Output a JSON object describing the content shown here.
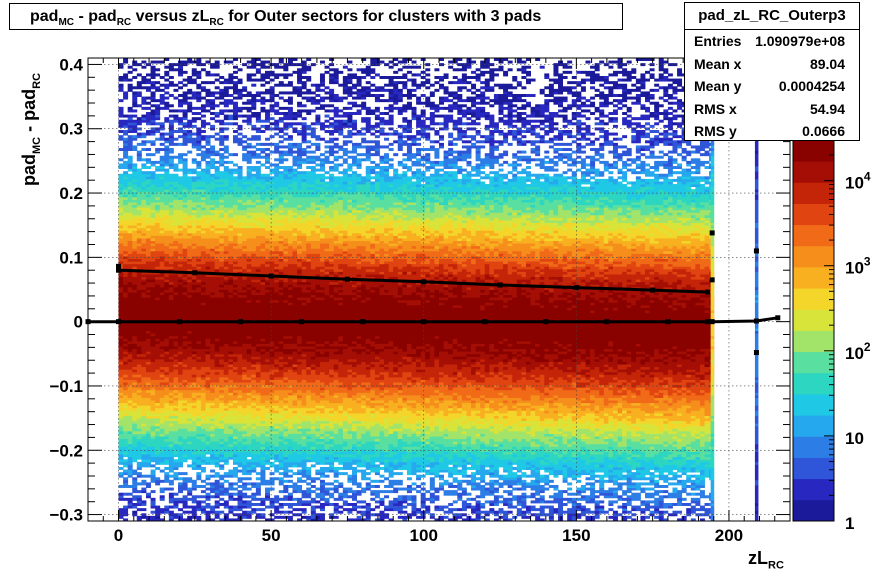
{
  "title": {
    "parts": [
      "pad",
      "MC",
      " - pad",
      "RC",
      " versus zL",
      "RC",
      " for Outer sectors for clusters with 3 pads"
    ]
  },
  "stats": {
    "name": "pad_zL_RC_Outerp3",
    "rows": [
      {
        "label": "Entries",
        "value": "1.090979e+08"
      },
      {
        "label": "Mean x",
        "value": "89.04"
      },
      {
        "label": "Mean y",
        "value": "0.0004254"
      },
      {
        "label": "RMS x",
        "value": "54.94"
      },
      {
        "label": "RMS y",
        "value": "0.0666"
      }
    ]
  },
  "axes": {
    "xlabel_main": "zL",
    "xlabel_sub": "RC",
    "ylabel_parts": [
      "pad",
      "MC",
      " - pad",
      "RC"
    ],
    "xticks": [
      {
        "v": 0,
        "label": "0"
      },
      {
        "v": 50,
        "label": "50"
      },
      {
        "v": 100,
        "label": "100"
      },
      {
        "v": 150,
        "label": "150"
      },
      {
        "v": 200,
        "label": "200"
      }
    ],
    "yticks": [
      {
        "v": 0.4,
        "label": "0.4"
      },
      {
        "v": 0.3,
        "label": "0.3"
      },
      {
        "v": 0.2,
        "label": "0.2"
      },
      {
        "v": 0.1,
        "label": "0.1"
      },
      {
        "v": 0,
        "label": "0"
      },
      {
        "v": -0.1,
        "label": "−0.1"
      },
      {
        "v": -0.2,
        "label": "−0.2"
      },
      {
        "v": -0.3,
        "label": "−0.3"
      }
    ],
    "zticks": [
      {
        "v": 1,
        "label": "1"
      },
      {
        "v": 10,
        "label": "10"
      },
      {
        "v": 100,
        "label": "10",
        "exp": "2"
      },
      {
        "v": 1000,
        "label": "10",
        "exp": "3"
      },
      {
        "v": 10000,
        "label": "10",
        "exp": "4"
      }
    ]
  },
  "chart_data": {
    "type": "heatmap",
    "title": "pad_MC - pad_RC versus zL_RC for Outer sectors for clusters with 3 pads",
    "xlabel": "zL_RC",
    "ylabel": "pad_MC - pad_RC",
    "xlim": [
      -10,
      220
    ],
    "ylim": [
      -0.31,
      0.41
    ],
    "z_scale": "log",
    "zlim": [
      1,
      30000
    ],
    "grid": true,
    "palette": [
      "#1a1a9a",
      "#2828c0",
      "#2f55d8",
      "#2c7ee6",
      "#26a8ee",
      "#1fc9e6",
      "#2cd6c0",
      "#59dfa0",
      "#a2e36a",
      "#d8e43a",
      "#f4d52a",
      "#f8b020",
      "#f68e1c",
      "#f06a18",
      "#e04410",
      "#c42408",
      "#a40e04",
      "#8a0200"
    ],
    "density": {
      "x_range": [
        0,
        194
      ],
      "peak_y_at_x0": 0.01,
      "peak_y_at_x194": -0.012,
      "width_y_at_x0": 0.09,
      "width_y_at_x194": 0.092,
      "peak_log10_counts": 4.45,
      "extra_strips": [
        {
          "x": 194.5,
          "relative_weight": 0.6
        },
        {
          "x": 209.0,
          "relative_weight": 0.2
        }
      ]
    },
    "series": [
      {
        "name": "profile",
        "style": "markers",
        "color": "#000000",
        "x": [
          -10,
          0,
          20,
          40,
          60,
          80,
          100,
          120,
          140,
          160,
          180,
          193,
          194.5,
          209,
          216
        ],
        "y": [
          0.0,
          0.0,
          0.0,
          0.0,
          0.0,
          0.0,
          0.0,
          0.0,
          0.0,
          0.0,
          0.0,
          0.0,
          0.0,
          0.001,
          0.006
        ]
      },
      {
        "name": "slope line",
        "style": "markers",
        "color": "#000000",
        "x": [
          0,
          25,
          50,
          75,
          100,
          125,
          150,
          175,
          193
        ],
        "y": [
          0.08,
          0.076,
          0.071,
          0.066,
          0.062,
          0.057,
          0.053,
          0.049,
          0.046
        ]
      },
      {
        "name": "isolated points",
        "style": "markers",
        "color": "#000000",
        "x": [
          0,
          194.5,
          194.5,
          209,
          209
        ],
        "y": [
          0.086,
          0.138,
          0.065,
          0.11,
          -0.048
        ]
      }
    ]
  }
}
